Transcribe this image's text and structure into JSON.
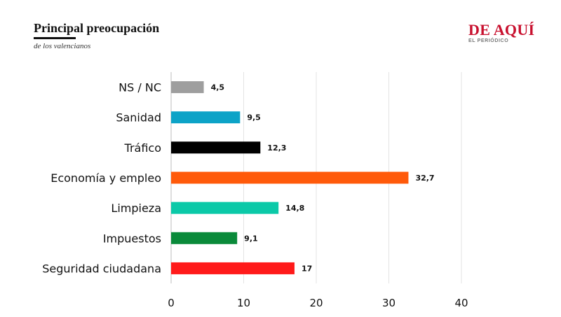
{
  "header": {
    "title": "Principal preocupación",
    "subtitle": "de los valencianos"
  },
  "brand": {
    "name": "DE AQUÍ",
    "tagline": "EL PERIÓDICO",
    "color": "#c8102e"
  },
  "chart_data": {
    "type": "bar",
    "orientation": "horizontal",
    "categories": [
      "NS / NC",
      "Sanidad",
      "Tráfico",
      "Economía y empleo",
      "Limpieza",
      "Impuestos",
      "Seguridad ciudadana"
    ],
    "values": [
      4.5,
      9.5,
      12.3,
      32.7,
      14.8,
      9.1,
      17
    ],
    "value_labels": [
      "4,5",
      "9,5",
      "12,3",
      "32,7",
      "14,8",
      "9,1",
      "17"
    ],
    "colors": [
      "#9e9e9e",
      "#0da3c7",
      "#000000",
      "#ff5a0a",
      "#0bc9a8",
      "#0a8a3a",
      "#ff1a1a"
    ],
    "xlim": [
      0,
      40
    ],
    "xticks": [
      0,
      10,
      20,
      30,
      40
    ],
    "xtick_labels": [
      "0",
      "10",
      "20",
      "30",
      "40"
    ],
    "grid": true,
    "title": "",
    "xlabel": "",
    "ylabel": ""
  }
}
